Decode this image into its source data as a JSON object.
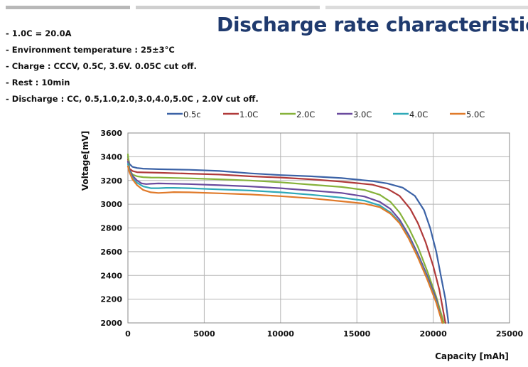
{
  "title": "Discharge rate characteristics",
  "notes": [
    "- 1.0C = 20.0A",
    "- Environment temperature  : 25±3°C",
    "- Charge : CCCV, 0.5C, 3.6V.  0.05C cut off.",
    "- Rest : 10min",
    "- Discharge : CC, 0.5,1.0,2.0,3.0,4.0,5.0C , 2.0V cut off."
  ],
  "colors": {
    "title": "#1f3a6e",
    "topbar": "#b8b8b8"
  },
  "chart_data": {
    "type": "line",
    "title": "",
    "xlabel": "Capacity [mAh]",
    "ylabel": "Voltage[mV]",
    "xlim": [
      0,
      25000
    ],
    "ylim": [
      2000,
      3600
    ],
    "xticks": [
      "0",
      "5000",
      "10000",
      "15000",
      "20000",
      "25000"
    ],
    "yticks": [
      "2000",
      "2200",
      "2400",
      "2600",
      "2800",
      "3000",
      "3200",
      "3400",
      "3600"
    ],
    "grid": true,
    "legend_position": "top",
    "series": [
      {
        "name": "0.5c",
        "color": "#3b62a6",
        "x": [
          0,
          100,
          300,
          600,
          1000,
          2000,
          4000,
          6000,
          8000,
          10000,
          12000,
          14000,
          16000,
          17000,
          18000,
          18800,
          19400,
          19800,
          20200,
          20500,
          20800,
          21000
        ],
        "y": [
          3400,
          3340,
          3315,
          3305,
          3300,
          3295,
          3290,
          3280,
          3260,
          3245,
          3235,
          3220,
          3195,
          3175,
          3140,
          3070,
          2950,
          2800,
          2600,
          2400,
          2200,
          2000
        ]
      },
      {
        "name": "1.0C",
        "color": "#b03a3a",
        "x": [
          0,
          100,
          300,
          600,
          1000,
          2000,
          4000,
          6000,
          8000,
          10000,
          12000,
          14000,
          16000,
          17000,
          17800,
          18500,
          19000,
          19500,
          20000,
          20400,
          20800
        ],
        "y": [
          3380,
          3300,
          3280,
          3270,
          3268,
          3265,
          3258,
          3250,
          3235,
          3225,
          3210,
          3190,
          3165,
          3130,
          3070,
          2960,
          2840,
          2680,
          2480,
          2280,
          2000
        ]
      },
      {
        "name": "2.0C",
        "color": "#86b23a",
        "x": [
          0,
          100,
          300,
          600,
          1000,
          1500,
          2000,
          4000,
          6000,
          8000,
          10000,
          12000,
          14000,
          15500,
          16500,
          17200,
          17800,
          18400,
          19000,
          19600,
          20200,
          20700
        ],
        "y": [
          3420,
          3290,
          3250,
          3235,
          3228,
          3225,
          3224,
          3218,
          3210,
          3200,
          3185,
          3165,
          3145,
          3120,
          3080,
          3020,
          2930,
          2800,
          2640,
          2440,
          2220,
          2000
        ]
      },
      {
        "name": "3.0C",
        "color": "#6a4a9e",
        "x": [
          0,
          100,
          300,
          600,
          900,
          1200,
          1500,
          2000,
          4000,
          6000,
          8000,
          10000,
          12000,
          14000,
          15500,
          16500,
          17200,
          17800,
          18400,
          19000,
          19600,
          20200,
          20600
        ],
        "y": [
          3360,
          3290,
          3240,
          3200,
          3175,
          3170,
          3172,
          3175,
          3170,
          3160,
          3150,
          3135,
          3115,
          3095,
          3065,
          3020,
          2960,
          2870,
          2740,
          2580,
          2400,
          2200,
          2000
        ]
      },
      {
        "name": "4.0C",
        "color": "#2fa9b8",
        "x": [
          0,
          100,
          300,
          600,
          1000,
          1500,
          2000,
          2500,
          3000,
          4000,
          6000,
          8000,
          10000,
          12000,
          14000,
          15500,
          16500,
          17200,
          17800,
          18400,
          19000,
          19600,
          20200,
          20600
        ],
        "y": [
          3340,
          3280,
          3220,
          3180,
          3150,
          3135,
          3135,
          3138,
          3138,
          3135,
          3125,
          3115,
          3100,
          3080,
          3055,
          3030,
          2990,
          2930,
          2850,
          2720,
          2560,
          2380,
          2180,
          2000
        ]
      },
      {
        "name": "5.0C",
        "color": "#e07a2a",
        "x": [
          0,
          100,
          300,
          600,
          1000,
          1500,
          2000,
          2500,
          3000,
          4000,
          6000,
          8000,
          10000,
          12000,
          14000,
          15500,
          16500,
          17200,
          17800,
          18400,
          19000,
          19600,
          20200,
          20600
        ],
        "y": [
          3320,
          3270,
          3210,
          3160,
          3120,
          3100,
          3095,
          3098,
          3102,
          3100,
          3092,
          3082,
          3068,
          3050,
          3025,
          3005,
          2975,
          2920,
          2840,
          2710,
          2550,
          2370,
          2170,
          2000
        ]
      }
    ]
  }
}
